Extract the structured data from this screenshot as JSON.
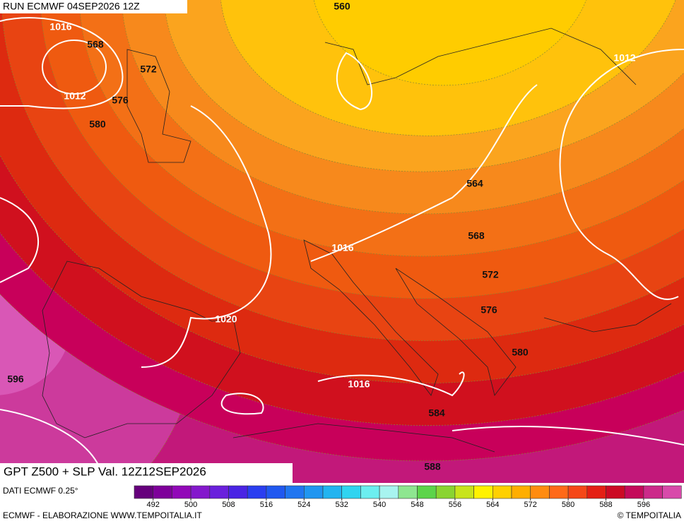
{
  "header": {
    "run": "RUN ECMWF 04SEP2026 12Z"
  },
  "map": {
    "height_labels": [
      560,
      568,
      572,
      576,
      580,
      564,
      568,
      572,
      576,
      580,
      584,
      588,
      596
    ],
    "pressure_labels": [
      1016,
      1012,
      1012,
      1016,
      1020,
      1016
    ]
  },
  "caption": "GPT Z500 + SLP Val. 12Z12SEP2026",
  "colorbar": {
    "source": "DATI ECMWF 0.25°",
    "ticks": [
      492,
      500,
      508,
      516,
      524,
      532,
      540,
      548,
      556,
      564,
      572,
      580,
      588,
      596
    ]
  },
  "footer": {
    "credit": "ECMWF - ELABORAZIONE WWW.TEMPOITALIA.IT",
    "copyright": "© TEMPOITALIA"
  }
}
